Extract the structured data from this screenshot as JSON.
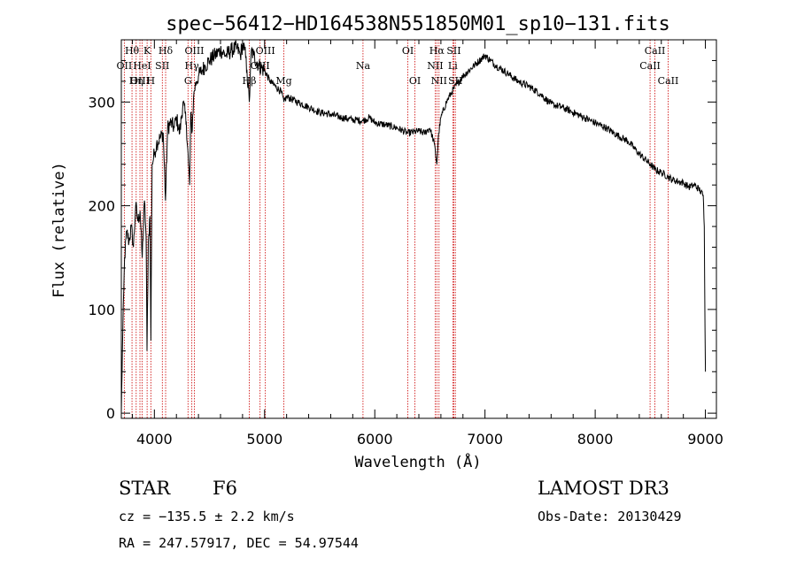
{
  "chart_data": {
    "type": "line",
    "title": "spec−56412−HD164538N551850M01_sp10−131.fits",
    "xlabel": "Wavelength (Å)",
    "ylabel": "Flux (relative)",
    "xlim": [
      3700,
      9100
    ],
    "ylim": [
      -5,
      360
    ],
    "x_ticks": [
      4000,
      5000,
      6000,
      7000,
      8000,
      9000
    ],
    "y_ticks": [
      0,
      100,
      200,
      300
    ],
    "grid": false,
    "series": [
      {
        "name": "spectrum",
        "x": [
          3700,
          3710,
          3730,
          3750,
          3770,
          3790,
          3810,
          3830,
          3850,
          3870,
          3890,
          3910,
          3925,
          3933,
          3945,
          3960,
          3968,
          3980,
          4000,
          4020,
          4050,
          4080,
          4101,
          4120,
          4150,
          4180,
          4200,
          4230,
          4260,
          4290,
          4310,
          4320,
          4330,
          4340,
          4360,
          4380,
          4400,
          4430,
          4460,
          4500,
          4550,
          4600,
          4650,
          4700,
          4750,
          4780,
          4800,
          4820,
          4840,
          4861,
          4880,
          4900,
          4950,
          5000,
          5050,
          5100,
          5150,
          5175,
          5200,
          5300,
          5400,
          5500,
          5600,
          5700,
          5800,
          5893,
          5950,
          6000,
          6100,
          6200,
          6300,
          6400,
          6450,
          6500,
          6540,
          6563,
          6580,
          6600,
          6650,
          6700,
          6750,
          6800,
          6900,
          7000,
          7050,
          7100,
          7200,
          7300,
          7400,
          7500,
          7600,
          7700,
          7800,
          7900,
          8000,
          8100,
          8200,
          8300,
          8400,
          8500,
          8542,
          8600,
          8662,
          8700,
          8800,
          8850,
          8900,
          8950,
          8980,
          8990,
          9000
        ],
        "y": [
          0,
          60,
          150,
          175,
          165,
          180,
          160,
          200,
          185,
          195,
          150,
          205,
          170,
          60,
          165,
          190,
          70,
          240,
          250,
          260,
          265,
          270,
          205,
          275,
          280,
          275,
          285,
          270,
          300,
          280,
          240,
          220,
          290,
          270,
          310,
          320,
          325,
          330,
          335,
          340,
          345,
          350,
          345,
          350,
          352,
          345,
          355,
          350,
          330,
          300,
          350,
          345,
          335,
          330,
          320,
          315,
          310,
          300,
          305,
          300,
          295,
          290,
          288,
          285,
          283,
          282,
          285,
          280,
          278,
          275,
          270,
          272,
          270,
          275,
          260,
          240,
          270,
          285,
          300,
          310,
          318,
          325,
          335,
          345,
          340,
          335,
          328,
          320,
          315,
          308,
          298,
          295,
          290,
          285,
          280,
          275,
          268,
          262,
          250,
          240,
          235,
          232,
          228,
          225,
          222,
          218,
          220,
          215,
          210,
          180,
          40
        ]
      }
    ],
    "spectral_lines": [
      {
        "label": "Hθ",
        "x": 3797,
        "row": 1
      },
      {
        "label": "OII",
        "x": 3727,
        "row": 2
      },
      {
        "label": "OIII",
        "x": 3869,
        "row": 3
      },
      {
        "label": "K",
        "x": 3934,
        "row": 1
      },
      {
        "label": "HeI",
        "x": 3889,
        "row": 2
      },
      {
        "label": "Hη",
        "x": 3835,
        "row": 3
      },
      {
        "label": "H",
        "x": 3968,
        "row": 3
      },
      {
        "label": "SII",
        "x": 4072,
        "row": 2
      },
      {
        "label": "Hδ",
        "x": 4102,
        "row": 1
      },
      {
        "label": "OIII",
        "x": 4363,
        "row": 1
      },
      {
        "label": "Hγ",
        "x": 4340,
        "row": 2
      },
      {
        "label": "G",
        "x": 4305,
        "row": 3
      },
      {
        "label": "OIII",
        "x": 5007,
        "row": 1
      },
      {
        "label": "OIII",
        "x": 4959,
        "row": 2
      },
      {
        "label": "Hβ",
        "x": 4861,
        "row": 3
      },
      {
        "label": "Mg",
        "x": 5175,
        "row": 3
      },
      {
        "label": "Na",
        "x": 5893,
        "row": 2
      },
      {
        "label": "OI",
        "x": 6300,
        "row": 1
      },
      {
        "label": "OI",
        "x": 6364,
        "row": 3
      },
      {
        "label": "Hα",
        "x": 6563,
        "row": 1
      },
      {
        "label": "NII",
        "x": 6548,
        "row": 2
      },
      {
        "label": "NII",
        "x": 6583,
        "row": 3
      },
      {
        "label": "SII",
        "x": 6717,
        "row": 1
      },
      {
        "label": "Li",
        "x": 6708,
        "row": 2
      },
      {
        "label": "SII",
        "x": 6731,
        "row": 3
      },
      {
        "label": "CaII",
        "x": 8542,
        "row": 1
      },
      {
        "label": "CaII",
        "x": 8498,
        "row": 2
      },
      {
        "label": "CaII",
        "x": 8662,
        "row": 3
      }
    ]
  },
  "info": {
    "object_class": "STAR",
    "subclass": "F6",
    "survey": "LAMOST DR3",
    "cz": "cz = −135.5 ± 2.2 km/s",
    "obs_date": "Obs-Date: 20130429",
    "radec": "RA = 247.57917, DEC =  54.97544"
  },
  "colors": {
    "line_marker": "#cc0000",
    "spectrum": "#000000"
  }
}
